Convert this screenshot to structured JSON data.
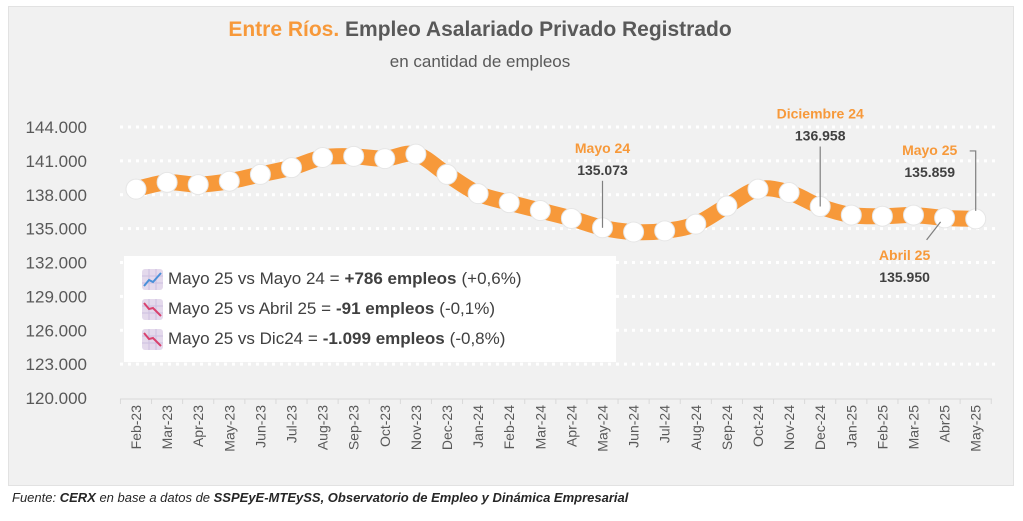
{
  "header": {
    "title_highlight": "Entre Ríos.",
    "title_rest": "Empleo Asalariado Privado Registrado",
    "subtitle": "en cantidad de empleos"
  },
  "colors": {
    "accent": "#f7993a",
    "text": "#595959",
    "marker_fill": "#ffffff",
    "up_icon": "#4a90d9",
    "down_icon": "#d9426e"
  },
  "summary": [
    {
      "icon": "chart-increasing-icon",
      "label": "Mayo 25 vs Mayo 24 = ",
      "value": "+786 empleos",
      "pct": "(+0,6%)"
    },
    {
      "icon": "chart-decreasing-icon",
      "label": "Mayo 25 vs Abril 25 =",
      "value": "-91 empleos",
      "pct": "(-0,1%)"
    },
    {
      "icon": "chart-decreasing-icon",
      "label": "Mayo 25 vs Dic24 =",
      "value": "-1.099 empleos",
      "pct": "(-0,8%)"
    }
  ],
  "footer": {
    "prefix": "Fuente: ",
    "source1": "CERX",
    "middle": " en base a datos de ",
    "source2": "SSPEyE-MTEySS, Observatorio de Empleo y Dinámica Empresarial"
  },
  "chart_data": {
    "type": "line",
    "title": "Entre Ríos. Empleo Asalariado Privado Registrado",
    "subtitle": "en cantidad de empleos",
    "xlabel": "",
    "ylabel": "",
    "ylim": [
      120000,
      144000
    ],
    "yticks": [
      120000,
      123000,
      126000,
      129000,
      132000,
      135000,
      138000,
      141000,
      144000
    ],
    "ytick_labels": [
      "120.000",
      "123.000",
      "126.000",
      "129.000",
      "132.000",
      "135.000",
      "138.000",
      "141.000",
      "144.000"
    ],
    "grid": "horizontal-dotted",
    "legend": "none",
    "categories": [
      "Feb-23",
      "Mar-23",
      "Apr-23",
      "May-23",
      "Jun-23",
      "Jul-23",
      "Aug-23",
      "Sep-23",
      "Oct-23",
      "Nov-23",
      "Dec-23",
      "Jan-24",
      "Feb-24",
      "Mar-24",
      "Apr-24",
      "May-24",
      "Jun-24",
      "Jul-24",
      "Aug-24",
      "Sep-24",
      "Oct-24",
      "Nov-24",
      "Dec-24",
      "Jan-25",
      "Feb-25",
      "Mar-25",
      "Abr25",
      "May-25"
    ],
    "series": [
      {
        "name": "Empleo asalariado privado registrado",
        "values": [
          138500,
          139100,
          138900,
          139200,
          139800,
          140400,
          141300,
          141400,
          141200,
          141600,
          139800,
          138100,
          137300,
          136600,
          135900,
          135073,
          134700,
          134800,
          135400,
          137000,
          138500,
          138200,
          136958,
          136200,
          136100,
          136200,
          135950,
          135859
        ]
      }
    ],
    "annotations": [
      {
        "category": "May-24",
        "title": "Mayo 24",
        "value_label": "135.073",
        "position": "above"
      },
      {
        "category": "Dec-24",
        "title": "Diciembre 24",
        "value_label": "136.958",
        "position": "above"
      },
      {
        "category": "May-25",
        "title": "Mayo 25",
        "value_label": "135.859",
        "position": "above-left"
      },
      {
        "category": "Abr25",
        "title": "Abril 25",
        "value_label": "135.950",
        "position": "below"
      }
    ]
  }
}
